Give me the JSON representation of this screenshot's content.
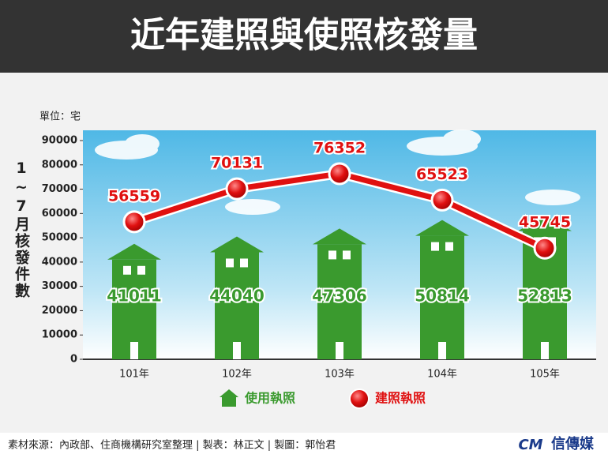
{
  "chart_data": {
    "type": "combo",
    "title": "近年建照與使照核發量",
    "unit_label": "單位：宅",
    "y_label": "1~7月核發件數",
    "categories": [
      "101年",
      "102年",
      "103年",
      "104年",
      "105年"
    ],
    "series": [
      {
        "name": "使用執照",
        "type": "bar",
        "color": "#3a9a2e",
        "values": [
          41011,
          44040,
          47306,
          50814,
          52813
        ]
      },
      {
        "name": "建照執照",
        "type": "line",
        "color": "#e01010",
        "values": [
          56559,
          70131,
          76352,
          65523,
          45745
        ]
      }
    ],
    "ylim": [
      0,
      90000
    ],
    "yticks": [
      0,
      10000,
      20000,
      30000,
      40000,
      50000,
      60000,
      70000,
      80000,
      90000
    ]
  },
  "footer": {
    "source": "素材來源：內政部、住商機構研究室整理 | 製表：林正文 | 製圖：郭怡君",
    "logo_mark": "CM",
    "logo": "信傳媒"
  }
}
